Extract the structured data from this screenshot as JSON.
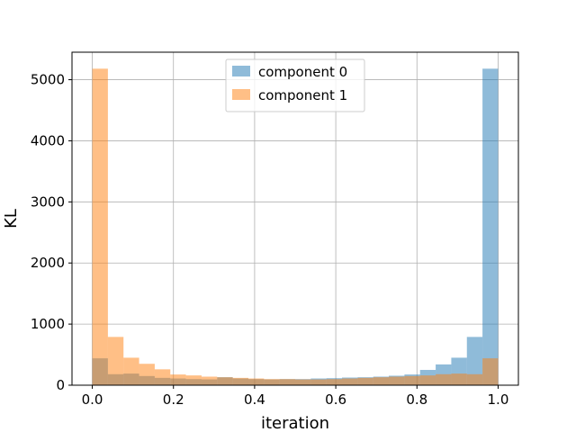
{
  "chart_data": {
    "type": "bar",
    "title": "",
    "xlabel": "iteration",
    "ylabel": "KL",
    "xlim": [
      -0.05,
      1.05
    ],
    "ylim": [
      0,
      5450
    ],
    "x_ticks": [
      "0.0",
      "0.2",
      "0.4",
      "0.6",
      "0.8",
      "1.0"
    ],
    "y_ticks": [
      "0",
      "1000",
      "2000",
      "3000",
      "4000",
      "5000"
    ],
    "grid": true,
    "legend_position": "upper center",
    "bins": [
      0.0,
      0.04,
      0.08,
      0.12,
      0.16,
      0.2,
      0.24,
      0.28,
      0.32,
      0.36,
      0.4,
      0.44,
      0.48,
      0.52,
      0.56,
      0.6,
      0.64,
      0.68,
      0.72,
      0.76,
      0.8,
      0.84,
      0.88,
      0.92,
      0.96,
      1.0
    ],
    "series": [
      {
        "name": "component 0",
        "color": "#1f77b4",
        "opacity": 0.5,
        "values": [
          440,
          180,
          190,
          150,
          120,
          110,
          100,
          95,
          130,
          110,
          100,
          95,
          100,
          100,
          110,
          115,
          125,
          130,
          140,
          155,
          175,
          250,
          340,
          450,
          790,
          5180
        ]
      },
      {
        "name": "component 1",
        "color": "#ff7f0e",
        "opacity": 0.5,
        "values": [
          5180,
          790,
          450,
          350,
          260,
          175,
          160,
          140,
          130,
          120,
          110,
          100,
          100,
          95,
          95,
          100,
          110,
          120,
          130,
          140,
          150,
          160,
          180,
          190,
          180,
          440
        ]
      }
    ]
  }
}
